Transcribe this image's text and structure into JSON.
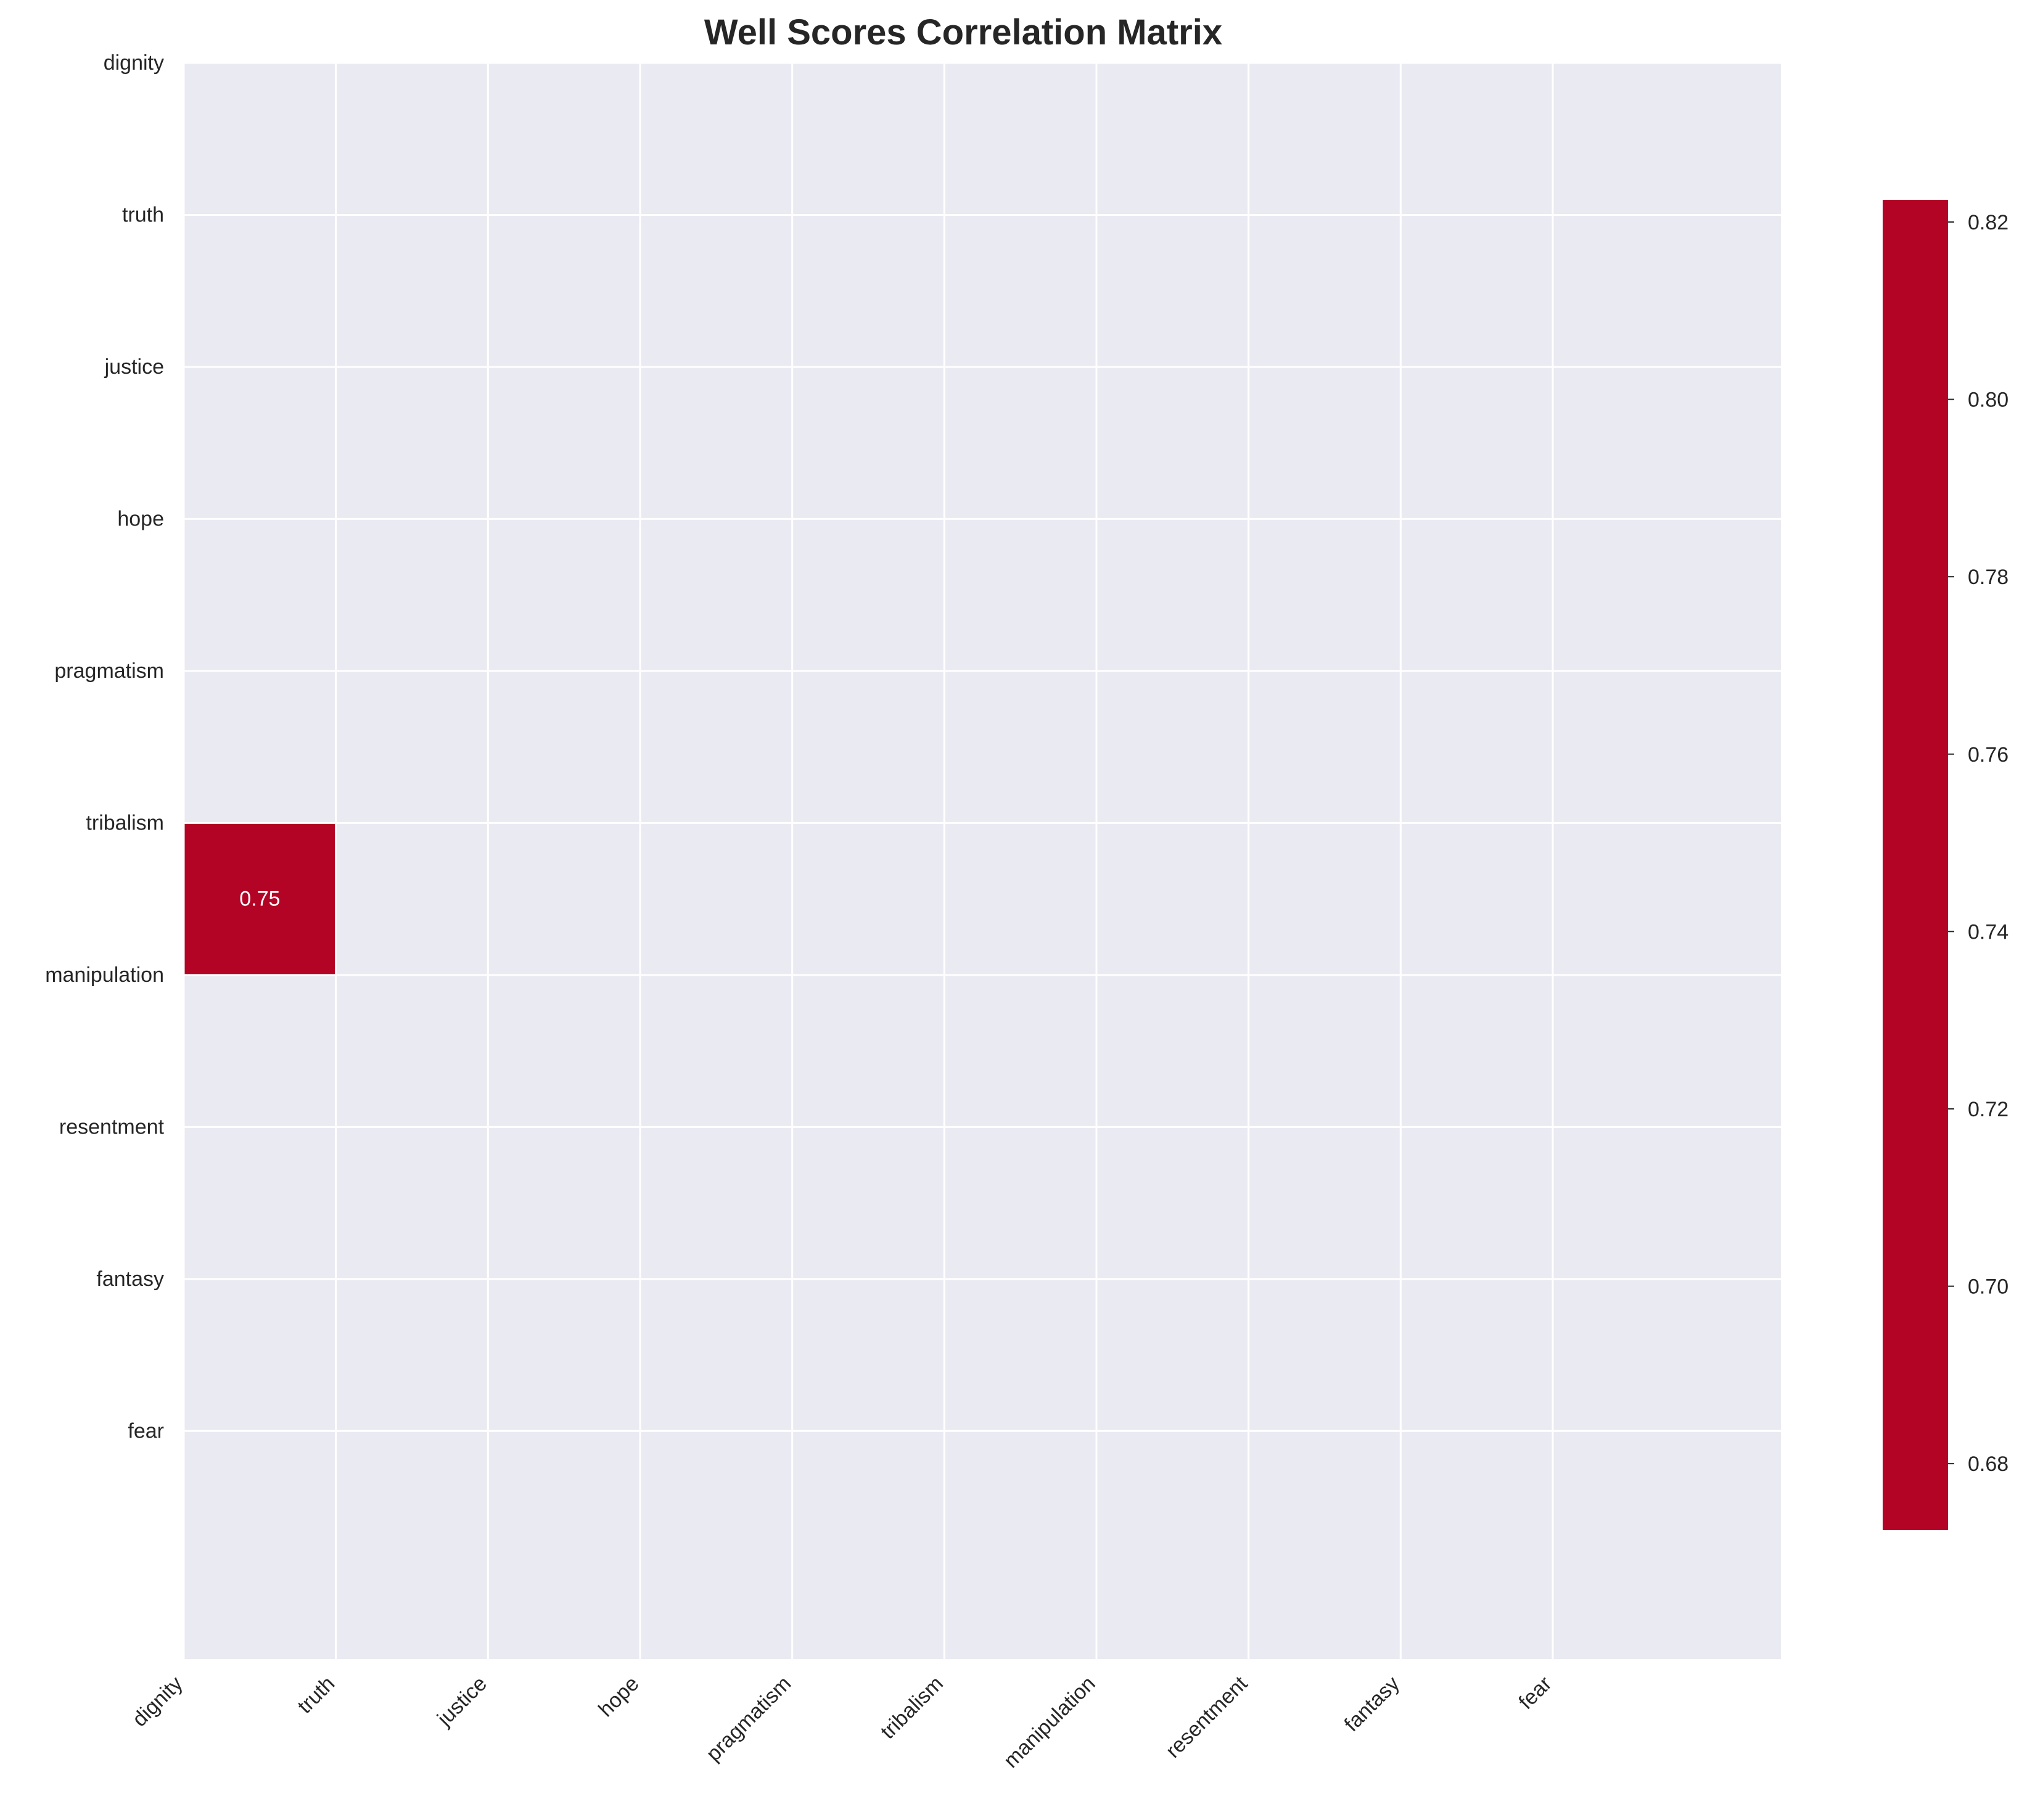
{
  "chart_data": {
    "type": "heatmap",
    "title": "Well Scores Correlation Matrix",
    "xlabel": "",
    "ylabel": "",
    "x_labels": [
      "dignity",
      "truth",
      "justice",
      "hope",
      "pragmatism",
      "tribalism",
      "manipulation",
      "resentment",
      "fantasy",
      "fear"
    ],
    "y_labels": [
      "dignity",
      "truth",
      "justice",
      "hope",
      "pragmatism",
      "tribalism",
      "manipulation",
      "resentment",
      "fantasy",
      "fear"
    ],
    "cells": [
      {
        "row": 5,
        "col": 0,
        "value": 0.75,
        "label": "0.75"
      }
    ],
    "grid": true,
    "colorbar": {
      "position": "right",
      "range": [
        0.6725,
        0.8225
      ],
      "ticks": [
        0.68,
        0.7,
        0.72,
        0.74,
        0.76,
        0.78,
        0.8,
        0.82
      ],
      "tick_labels": [
        "0.68",
        "0.70",
        "0.72",
        "0.74",
        "0.76",
        "0.78",
        "0.80",
        "0.82"
      ]
    }
  },
  "colors": {
    "cell_fill": "#b40426",
    "colorbar_fill": "#b40426",
    "axes_background": "#eaeaf2",
    "grid": "#ffffff",
    "text": "#262626",
    "annotation_text": "#ffffff"
  }
}
